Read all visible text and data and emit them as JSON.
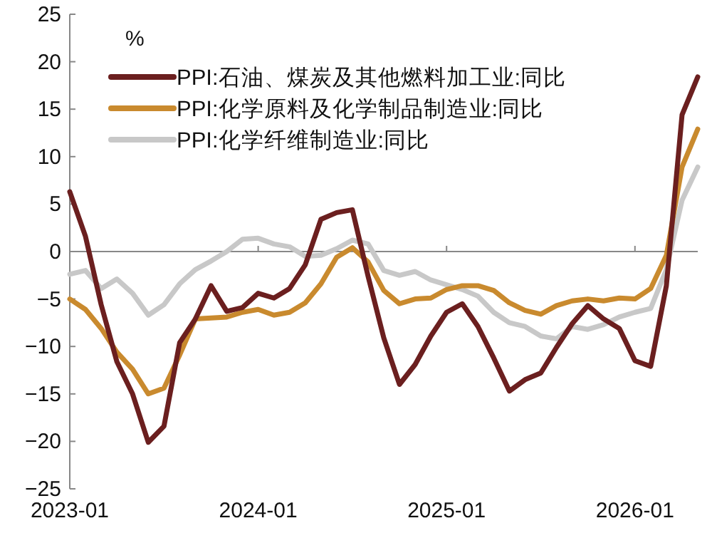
{
  "chart_data": {
    "type": "line",
    "ylabel": "%",
    "x": [
      "2023-01",
      "2023-02",
      "2023-03",
      "2023-04",
      "2023-05",
      "2023-06",
      "2023-07",
      "2023-08",
      "2023-09",
      "2023-10",
      "2023-11",
      "2023-12",
      "2024-01",
      "2024-02",
      "2024-03",
      "2024-04",
      "2024-05",
      "2024-06",
      "2024-07",
      "2024-08",
      "2024-09",
      "2024-10",
      "2024-11",
      "2024-12",
      "2025-01",
      "2025-02",
      "2025-03",
      "2025-04",
      "2025-05",
      "2025-06",
      "2025-07",
      "2025-08",
      "2025-09",
      "2025-10",
      "2025-11",
      "2025-12",
      "2026-01",
      "2026-02",
      "2026-03",
      "2026-04",
      "2026-05"
    ],
    "xlim": [
      "2023-01",
      "2026-05"
    ],
    "xticks": [
      "2023-01",
      "2024-01",
      "2025-01",
      "2026-01"
    ],
    "ylim": [
      -25,
      25
    ],
    "yticks": [
      -25,
      -20,
      -15,
      -10,
      -5,
      0,
      5,
      10,
      15,
      20,
      25
    ],
    "legend": "top",
    "marker": "none",
    "line_style": "solid",
    "series": [
      {
        "name": "PPI:石油、煤炭及其他燃料加工业:同比",
        "color": "#6b1f1f",
        "values": [
          6.3,
          1.6,
          -5.6,
          -11.6,
          -15,
          -20.1,
          -18.4,
          -9.6,
          -7.1,
          -3.6,
          -6.3,
          -5.9,
          -4.4,
          -4.9,
          -3.9,
          -1.4,
          3.4,
          4.1,
          4.4,
          -2.6,
          -9.1,
          -14,
          -11.9,
          -8.9,
          -6.4,
          -5.5,
          -7.9,
          -11.2,
          -14.7,
          -13.5,
          -12.8,
          -10.1,
          -7.6,
          -5.7,
          -7.1,
          -8.1,
          -11.5,
          -12.1,
          -3.6,
          14.4,
          18.4
        ]
      },
      {
        "name": "PPI:化学原料及化学制品制造业:同比",
        "color": "#c98a2e",
        "values": [
          -5,
          -6.1,
          -8.1,
          -10.6,
          -12.4,
          -15,
          -14.4,
          -10.9,
          -7.1,
          -7,
          -6.9,
          -6.4,
          -6.1,
          -6.7,
          -6.4,
          -5.4,
          -3.4,
          -0.6,
          0.4,
          -1.1,
          -4.1,
          -5.5,
          -5,
          -4.9,
          -4,
          -3.6,
          -3.6,
          -4.1,
          -5.4,
          -6.2,
          -6.6,
          -5.7,
          -5.2,
          -5,
          -5.2,
          -4.9,
          -5,
          -3.9,
          -0.4,
          8.9,
          12.9
        ]
      },
      {
        "name": "PPI:化学纤维制造业:同比",
        "color": "#c8c8c8",
        "values": [
          -2.4,
          -2,
          -3.9,
          -2.9,
          -4.4,
          -6.7,
          -5.6,
          -3.4,
          -1.9,
          -1,
          0,
          1.3,
          1.4,
          0.8,
          0.5,
          -0.5,
          -0.4,
          0.3,
          1.2,
          0.8,
          -2,
          -2.5,
          -2.1,
          -3,
          -3.5,
          -4,
          -4.7,
          -6.4,
          -7.5,
          -7.9,
          -8.9,
          -9.2,
          -7.9,
          -8.2,
          -7.7,
          -6.9,
          -6.4,
          -6,
          -1.9,
          5.4,
          8.9
        ]
      }
    ]
  }
}
